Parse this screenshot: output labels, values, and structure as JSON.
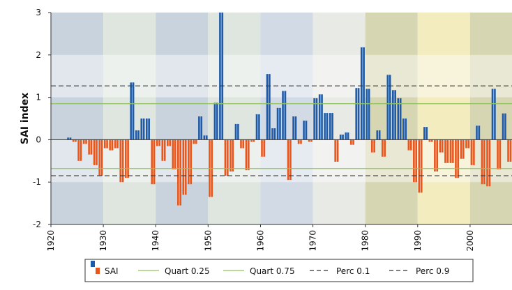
{
  "chart_data": {
    "type": "bar",
    "y_label": "SAI index",
    "x": [
      1923,
      1924,
      1925,
      1926,
      1927,
      1928,
      1929,
      1930,
      1931,
      1932,
      1933,
      1934,
      1935,
      1936,
      1937,
      1938,
      1939,
      1940,
      1941,
      1942,
      1943,
      1944,
      1945,
      1946,
      1947,
      1948,
      1949,
      1950,
      1951,
      1952,
      1953,
      1954,
      1955,
      1956,
      1957,
      1958,
      1959,
      1960,
      1961,
      1962,
      1963,
      1964,
      1965,
      1966,
      1967,
      1968,
      1969,
      1970,
      1971,
      1972,
      1973,
      1974,
      1975,
      1976,
      1977,
      1978,
      1979,
      1980,
      1981,
      1982,
      1983,
      1984,
      1985,
      1986,
      1987,
      1988,
      1989,
      1990,
      1991,
      1992,
      1993,
      1994,
      1995,
      1996,
      1997,
      1998,
      1999,
      2000,
      2001,
      2002,
      2003,
      2004,
      2005,
      2006,
      2007
    ],
    "series": [
      {
        "name": "SAI",
        "color": "#1f5aa6",
        "negative_color": "#e8561c",
        "values": [
          0.05,
          -0.05,
          -0.5,
          -0.1,
          -0.35,
          -0.6,
          -0.85,
          -0.2,
          -0.25,
          -0.2,
          -1.0,
          -0.9,
          1.35,
          0.22,
          0.5,
          0.5,
          -1.05,
          -0.15,
          -0.5,
          -0.15,
          -0.7,
          -1.55,
          -1.3,
          -1.05,
          -0.1,
          0.55,
          0.1,
          -1.35,
          0.87,
          3.0,
          -0.85,
          -0.75,
          0.37,
          -0.2,
          -0.72,
          -0.05,
          0.6,
          -0.4,
          1.55,
          0.27,
          0.75,
          1.15,
          -0.95,
          0.55,
          -0.1,
          0.45,
          -0.05,
          0.98,
          1.07,
          0.63,
          0.63,
          -0.52,
          0.12,
          0.17,
          -0.12,
          1.22,
          2.18,
          1.2,
          -0.3,
          0.22,
          -0.4,
          1.53,
          1.17,
          0.98,
          0.5,
          -0.25,
          -1.0,
          -1.25,
          0.3,
          -0.05,
          -0.75,
          -0.3,
          -0.55,
          -0.55,
          -0.9,
          -0.45,
          -0.2,
          -0.6,
          0.33,
          -1.05,
          -1.1,
          1.2,
          -0.7,
          0.62,
          -0.52
        ]
      }
    ],
    "lines": [
      {
        "name": "Quart 0.25",
        "value": -0.68,
        "color": "#8fc45a",
        "dash": false
      },
      {
        "name": "Quart 0.75",
        "value": 0.85,
        "color": "#8fc45a",
        "dash": false
      },
      {
        "name": "Perc 0.1",
        "value": -0.85,
        "color": "#333333",
        "dash": true
      },
      {
        "name": "Perc 0.9",
        "value": 1.27,
        "color": "#333333",
        "dash": true
      }
    ],
    "xlim": [
      1920,
      2008
    ],
    "xticks": [
      1920,
      1930,
      1940,
      1950,
      1960,
      1970,
      1980,
      1990,
      2000
    ],
    "ylim": [
      -2,
      3
    ],
    "yticks": [
      -2,
      -1,
      0,
      1,
      2,
      3
    ]
  }
}
